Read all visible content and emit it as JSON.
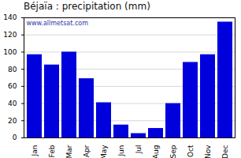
{
  "chart_data": {
    "type": "bar",
    "title": "Béjaïa : precipitation (mm)",
    "categories": [
      "Jan",
      "Feb",
      "Mar",
      "Apr",
      "May",
      "Jun",
      "Jul",
      "Aug",
      "Sep",
      "Oct",
      "Nov",
      "Dec"
    ],
    "values": [
      97,
      85,
      100,
      69,
      41,
      15,
      5,
      11,
      40,
      88,
      97,
      135
    ],
    "color": "#0000dd",
    "ylim": [
      0,
      140
    ],
    "yticks": [
      0,
      20,
      40,
      60,
      80,
      100,
      120,
      140
    ],
    "grid": true,
    "annotations": [
      "www.allmetsat.com"
    ]
  }
}
